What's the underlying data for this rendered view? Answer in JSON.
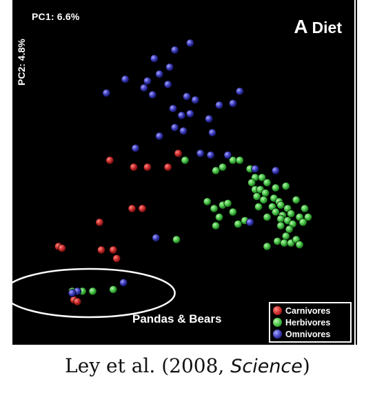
{
  "panel": {
    "letter": "A",
    "title": "Diet",
    "pc1_label": "PC1: 6.6%",
    "pc2_label": "PC2: 4.8%",
    "annotation": "Pandas & Bears"
  },
  "legend": {
    "items": [
      {
        "label": "Carnivores",
        "color": "#c62828"
      },
      {
        "label": "Herbivores",
        "color": "#43c043"
      },
      {
        "label": "Omnivores",
        "color": "#3a3ab8"
      }
    ]
  },
  "caption": {
    "prefix": "Ley et al. (2008, ",
    "journal": "Science",
    "suffix": ")"
  },
  "chart_data": {
    "type": "scatter",
    "title": "Diet",
    "xlabel": "PC1: 6.6%",
    "ylabel": "PC2: 4.8%",
    "xlim": [
      0,
      100
    ],
    "ylim": [
      0,
      100
    ],
    "grid": false,
    "legend_position": "bottom-right",
    "colors": {
      "Carnivores": "#c62828",
      "Herbivores": "#43c043",
      "Omnivores": "#3a3ab8"
    },
    "highlight_group": {
      "label": "Pandas & Bears",
      "cx": 22.5,
      "cy": 15.0,
      "rx": 25.0,
      "ry": 7.0
    },
    "series": [
      {
        "name": "Carnivores",
        "points": [
          [
            28.5,
            53.5
          ],
          [
            35.5,
            51.5
          ],
          [
            39.5,
            51.5
          ],
          [
            45.5,
            51.5
          ],
          [
            48.5,
            55.5
          ],
          [
            35.0,
            39.5
          ],
          [
            38.0,
            39.5
          ],
          [
            25.5,
            35.5
          ],
          [
            13.5,
            28.5
          ],
          [
            14.5,
            28.0
          ],
          [
            26.0,
            27.5
          ],
          [
            29.5,
            27.5
          ],
          [
            30.5,
            25.0
          ],
          [
            18.0,
            13.0
          ],
          [
            19.0,
            12.5
          ]
        ]
      },
      {
        "name": "Herbivores",
        "points": [
          [
            50.5,
            53.5
          ],
          [
            59.5,
            50.5
          ],
          [
            61.5,
            51.5
          ],
          [
            64.5,
            53.5
          ],
          [
            66.5,
            53.5
          ],
          [
            69.5,
            51.0
          ],
          [
            57.0,
            41.5
          ],
          [
            61.5,
            40.5
          ],
          [
            63.0,
            41.0
          ],
          [
            59.0,
            39.5
          ],
          [
            60.5,
            37.0
          ],
          [
            59.5,
            34.5
          ],
          [
            64.5,
            38.5
          ],
          [
            66.0,
            35.0
          ],
          [
            68.0,
            36.0
          ],
          [
            71.0,
            48.5
          ],
          [
            73.0,
            48.5
          ],
          [
            70.0,
            47.0
          ],
          [
            74.5,
            47.0
          ],
          [
            71.0,
            45.0
          ],
          [
            72.5,
            45.0
          ],
          [
            74.0,
            44.0
          ],
          [
            77.0,
            45.5
          ],
          [
            80.0,
            46.0
          ],
          [
            71.5,
            43.0
          ],
          [
            73.5,
            42.0
          ],
          [
            76.5,
            42.5
          ],
          [
            78.0,
            41.5
          ],
          [
            72.0,
            40.0
          ],
          [
            76.0,
            40.0
          ],
          [
            78.5,
            40.5
          ],
          [
            80.5,
            39.5
          ],
          [
            83.0,
            42.0
          ],
          [
            85.5,
            39.5
          ],
          [
            77.0,
            38.5
          ],
          [
            79.0,
            37.5
          ],
          [
            81.5,
            38.0
          ],
          [
            84.0,
            37.0
          ],
          [
            86.5,
            37.0
          ],
          [
            74.5,
            37.0
          ],
          [
            78.5,
            36.5
          ],
          [
            80.5,
            36.0
          ],
          [
            82.0,
            35.0
          ],
          [
            85.0,
            35.5
          ],
          [
            78.5,
            34.5
          ],
          [
            81.0,
            33.5
          ],
          [
            80.0,
            31.5
          ],
          [
            77.5,
            30.0
          ],
          [
            79.5,
            29.5
          ],
          [
            81.5,
            29.5
          ],
          [
            83.0,
            30.5
          ],
          [
            84.0,
            29.0
          ],
          [
            74.5,
            28.5
          ],
          [
            48.0,
            30.5
          ],
          [
            29.5,
            16.0
          ],
          [
            23.5,
            15.5
          ],
          [
            20.5,
            15.5
          ],
          [
            17.5,
            15.5
          ]
        ]
      },
      {
        "name": "Omnivores",
        "points": [
          [
            52.0,
            87.5
          ],
          [
            47.5,
            85.5
          ],
          [
            41.5,
            83.0
          ],
          [
            46.0,
            80.5
          ],
          [
            43.0,
            78.5
          ],
          [
            33.0,
            77.0
          ],
          [
            39.5,
            76.5
          ],
          [
            45.5,
            75.5
          ],
          [
            38.5,
            74.5
          ],
          [
            27.5,
            73.0
          ],
          [
            41.0,
            72.5
          ],
          [
            51.0,
            72.0
          ],
          [
            66.5,
            73.5
          ],
          [
            53.5,
            71.0
          ],
          [
            64.5,
            70.0
          ],
          [
            47.0,
            68.5
          ],
          [
            60.5,
            69.5
          ],
          [
            49.5,
            66.5
          ],
          [
            52.0,
            67.0
          ],
          [
            57.5,
            65.5
          ],
          [
            47.5,
            63.0
          ],
          [
            50.0,
            62.0
          ],
          [
            58.5,
            61.5
          ],
          [
            43.0,
            60.5
          ],
          [
            36.0,
            57.0
          ],
          [
            55.0,
            55.5
          ],
          [
            58.0,
            55.0
          ],
          [
            63.0,
            55.0
          ],
          [
            71.0,
            51.0
          ],
          [
            77.0,
            50.5
          ],
          [
            69.5,
            35.5
          ],
          [
            42.0,
            31.0
          ],
          [
            32.5,
            18.0
          ],
          [
            19.0,
            15.5
          ],
          [
            17.5,
            15.0
          ]
        ]
      }
    ]
  }
}
